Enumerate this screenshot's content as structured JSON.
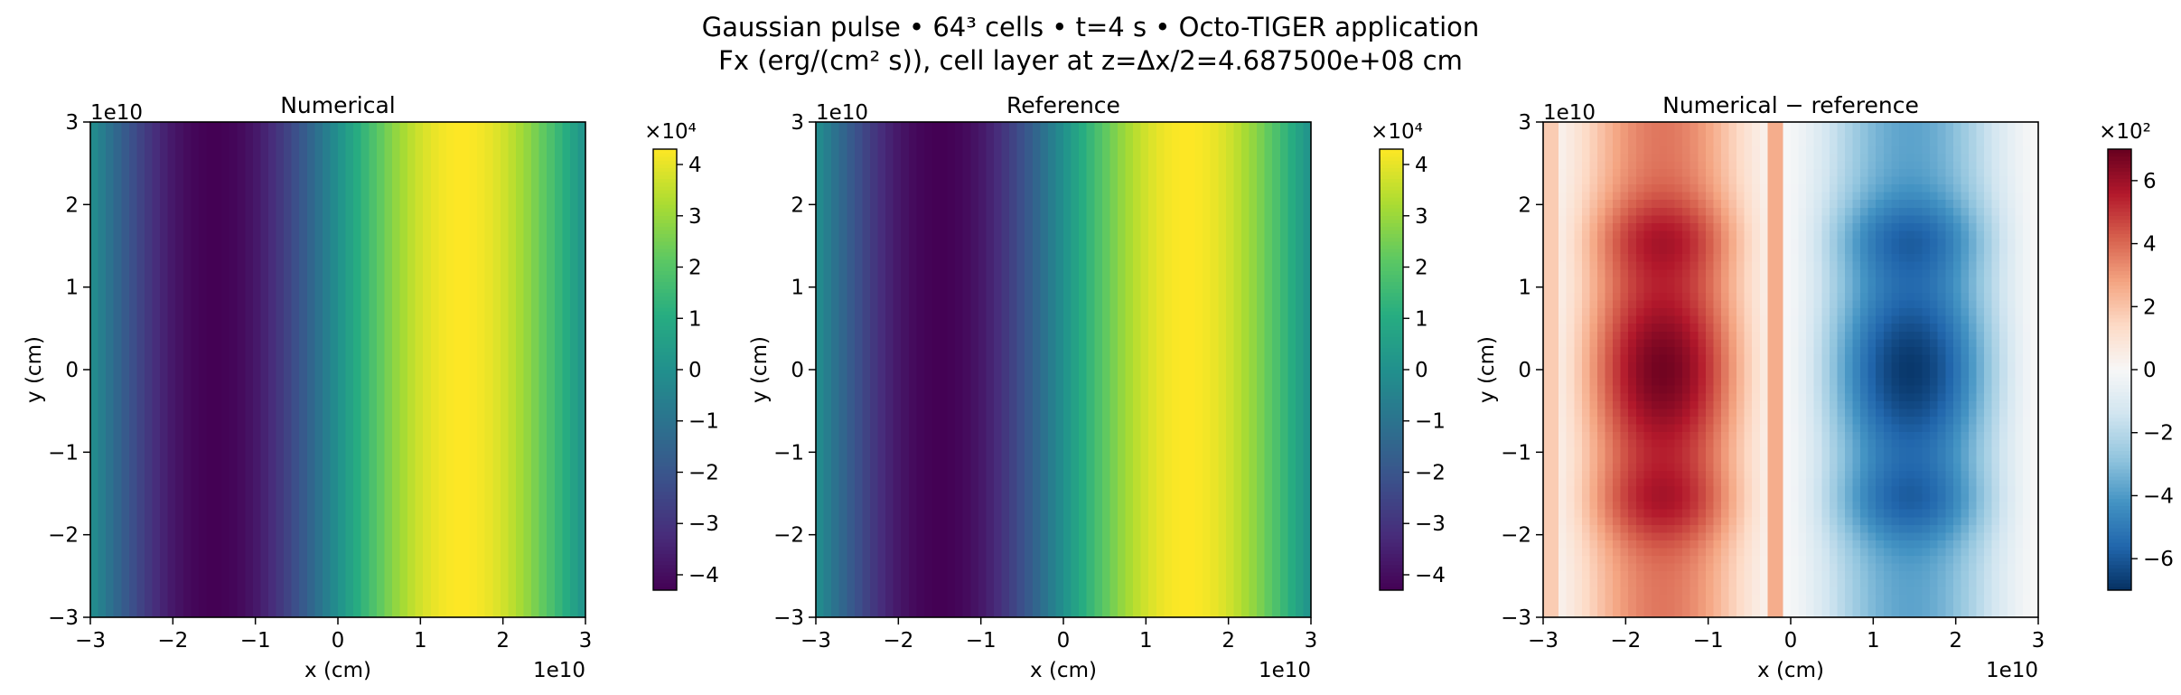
{
  "figure": {
    "title_line1": "Gaussian pulse • 64³ cells • t=4 s • Octo-TIGER application",
    "title_line2": "Fx (erg/(cm² s)), cell layer at z=Δx/2=4.687500e+08 cm"
  },
  "chart_data": [
    {
      "type": "heatmap",
      "title": "Numerical",
      "xlabel": "x (cm)",
      "ylabel": "y (cm)",
      "x_offset_text": "1e10",
      "y_offset_text": "1e10",
      "xlim": [
        -3,
        3
      ],
      "ylim": [
        -3,
        3
      ],
      "x_ticks": [
        -3,
        -2,
        -1,
        0,
        1,
        2,
        3
      ],
      "y_ticks": [
        -3,
        -2,
        -1,
        0,
        1,
        2,
        3
      ],
      "x_tick_labels": [
        "−3",
        "−2",
        "−1",
        "0",
        "1",
        "2",
        "3"
      ],
      "y_tick_labels": [
        "−3",
        "−2",
        "−1",
        "0",
        "1",
        "2",
        "3"
      ],
      "grid_size": [
        64,
        64
      ],
      "field": "sinusoid in x, min −4.3 at x≈−1.5, max 4.3 at x≈1.5, uniform in y",
      "colormap": "viridis",
      "colorbar": {
        "offset_text": "×10⁴",
        "range": [
          -4.3,
          4.3
        ],
        "ticks": [
          -4,
          -3,
          -2,
          -1,
          0,
          1,
          2,
          3,
          4
        ],
        "tick_labels": [
          "−4",
          "−3",
          "−2",
          "−1",
          "0",
          "1",
          "2",
          "3",
          "4"
        ]
      }
    },
    {
      "type": "heatmap",
      "title": "Reference",
      "xlabel": "x (cm)",
      "ylabel": "y (cm)",
      "x_offset_text": "1e10",
      "y_offset_text": "1e10",
      "xlim": [
        -3,
        3
      ],
      "ylim": [
        -3,
        3
      ],
      "x_ticks": [
        -3,
        -2,
        -1,
        0,
        1,
        2,
        3
      ],
      "y_ticks": [
        -3,
        -2,
        -1,
        0,
        1,
        2,
        3
      ],
      "x_tick_labels": [
        "−3",
        "−2",
        "−1",
        "0",
        "1",
        "2",
        "3"
      ],
      "y_tick_labels": [
        "−3",
        "−2",
        "−1",
        "0",
        "1",
        "2",
        "3"
      ],
      "grid_size": [
        64,
        64
      ],
      "field": "sinusoid in x, min −4.3 at x≈−1.5, max 4.3 at x≈1.5, uniform in y",
      "colormap": "viridis",
      "colorbar": {
        "offset_text": "×10⁴",
        "range": [
          -4.3,
          4.3
        ],
        "ticks": [
          -4,
          -3,
          -2,
          -1,
          0,
          1,
          2,
          3,
          4
        ],
        "tick_labels": [
          "−4",
          "−3",
          "−2",
          "−1",
          "0",
          "1",
          "2",
          "3",
          "4"
        ]
      }
    },
    {
      "type": "heatmap",
      "title": "Numerical − reference",
      "xlabel": "x (cm)",
      "ylabel": "y (cm)",
      "x_offset_text": "1e10",
      "y_offset_text": "1e10",
      "xlim": [
        -3,
        3
      ],
      "ylim": [
        -3,
        3
      ],
      "x_ticks": [
        -3,
        -2,
        -1,
        0,
        1,
        2,
        3
      ],
      "y_ticks": [
        -3,
        -2,
        -1,
        0,
        1,
        2,
        3
      ],
      "x_tick_labels": [
        "−3",
        "−2",
        "−1",
        "0",
        "1",
        "2",
        "3"
      ],
      "y_tick_labels": [
        "−3",
        "−2",
        "−1",
        "0",
        "1",
        "2",
        "3"
      ],
      "grid_size": [
        64,
        64
      ],
      "field": "difference: max ≈ 7 at (−1.8, 0), min ≈ −7 at (1.8, 0), near 0 at x≈−3 and x≈3",
      "colormap": "RdBu_r",
      "colorbar": {
        "offset_text": "×10²",
        "range": [
          -7,
          7
        ],
        "ticks": [
          -6,
          -4,
          -2,
          0,
          2,
          4,
          6
        ],
        "tick_labels": [
          "−6",
          "−4",
          "−2",
          "0",
          "2",
          "4",
          "6"
        ]
      }
    }
  ]
}
